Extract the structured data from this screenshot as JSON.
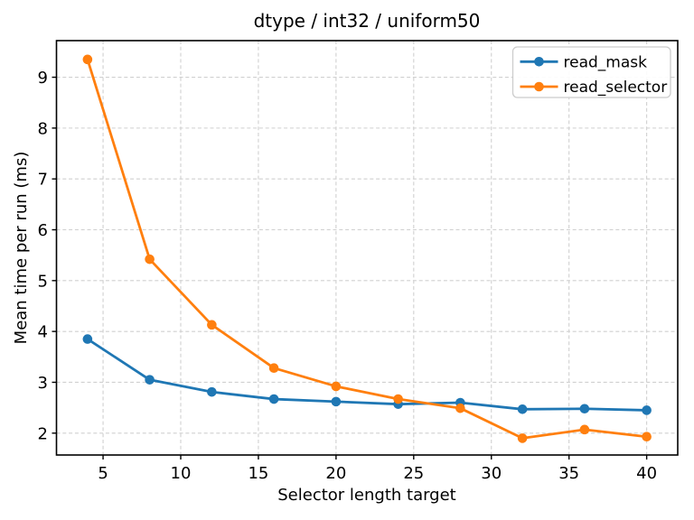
{
  "chart_data": {
    "type": "line",
    "title": "dtype / int32 / uniform50",
    "xlabel": "Selector length target",
    "ylabel": "Mean time per run (ms)",
    "x": [
      4,
      8,
      12,
      16,
      20,
      24,
      28,
      32,
      36,
      40
    ],
    "series": [
      {
        "name": "read_mask",
        "color": "#1f77b4",
        "values": [
          3.85,
          3.05,
          2.81,
          2.67,
          2.62,
          2.57,
          2.6,
          2.47,
          2.48,
          2.45
        ]
      },
      {
        "name": "read_selector",
        "color": "#ff7f0e",
        "values": [
          9.35,
          5.42,
          4.13,
          3.28,
          2.92,
          2.67,
          2.49,
          1.9,
          2.07,
          1.93
        ]
      }
    ],
    "xticks": [
      5,
      10,
      15,
      20,
      25,
      30,
      35,
      40
    ],
    "yticks": [
      2,
      3,
      4,
      5,
      6,
      7,
      8,
      9
    ],
    "xlim": [
      2,
      42
    ],
    "ylim": [
      1.57,
      9.72
    ],
    "grid": true,
    "grid_color": "#d0d0d0",
    "background": "#ffffff",
    "legend_position": "upper right"
  }
}
